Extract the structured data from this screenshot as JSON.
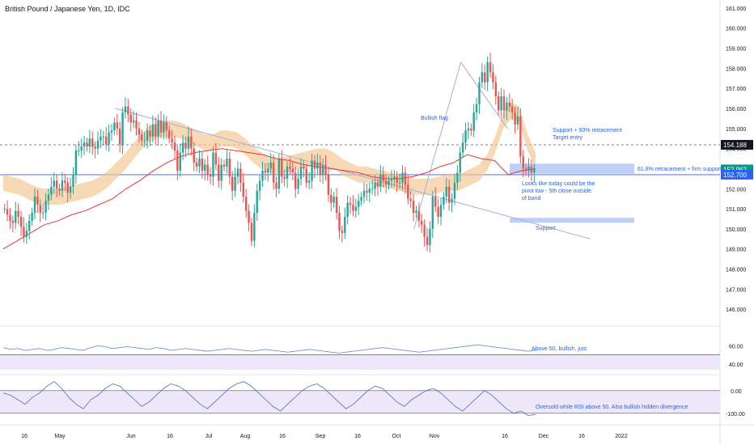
{
  "title": "British Pound / Japanese Yen, 1D, IDC",
  "colors": {
    "up": "#26a69a",
    "down": "#ef5350",
    "band": "#f5c58f",
    "ma": "#e53935",
    "trend": "#9fb1d8",
    "annotation": "#2962ff",
    "rsi_line": "#5b7fd6",
    "cci_line": "#4c6bd1",
    "zone_fill": "#b3c8f5",
    "price_axis_text": "#131722"
  },
  "chart_data": {
    "type": "candlestick",
    "ylim": [
      145.2,
      161.4
    ],
    "y_ticks": [
      "146.000",
      "147.000",
      "148.000",
      "149.000",
      "150.000",
      "151.000",
      "152.000",
      "153.000",
      "154.000",
      "155.000",
      "156.000",
      "157.000",
      "158.000",
      "159.000",
      "160.000",
      "161.000"
    ],
    "x_ticks": [
      "16",
      "May",
      "Jun",
      "16",
      "Jul",
      "Aug",
      "16",
      "Sep",
      "16",
      "Oct",
      "Nov",
      "16",
      "Dec",
      "16",
      "2022"
    ],
    "price_labels": [
      {
        "value": "154.188",
        "price": 154.188,
        "style": "dashed"
      },
      {
        "value": "152.962",
        "price": 152.962,
        "style": "current"
      },
      {
        "value": "152.700",
        "price": 152.7,
        "style": "support"
      }
    ],
    "candles_close": [
      151.0,
      150.7,
      150.4,
      150.3,
      150.9,
      150.6,
      150.1,
      149.6,
      149.9,
      150.4,
      150.8,
      151.6,
      151.2,
      150.8,
      150.8,
      151.4,
      151.7,
      152.1,
      152.4,
      152.0,
      151.9,
      152.4,
      152.3,
      151.8,
      152.1,
      152.7,
      153.9,
      153.9,
      154.1,
      154.3,
      154.1,
      154.5,
      154.1,
      154.0,
      154.4,
      154.6,
      154.6,
      154.2,
      154.8,
      154.9,
      155.3,
      155.0,
      154.2,
      155.8,
      156.1,
      155.7,
      155.3,
      155.4,
      155.0,
      154.7,
      154.4,
      154.4,
      154.9,
      154.6,
      155.2,
      154.6,
      155.4,
      154.8,
      155.3,
      154.9,
      154.5,
      154.3,
      153.9,
      152.9,
      153.8,
      154.3,
      154.0,
      154.6,
      154.0,
      153.3,
      153.1,
      153.5,
      152.9,
      153.2,
      152.7,
      152.6,
      153.8,
      153.2,
      152.4,
      153.2,
      153.1,
      153.5,
      152.6,
      151.9,
      152.6,
      153.0,
      152.3,
      151.6,
      150.9,
      150.3,
      149.4,
      150.8,
      151.9,
      152.4,
      152.9,
      152.8,
      153.0,
      153.3,
      152.3,
      152.0,
      153.5,
      152.6,
      152.5,
      153.1,
      153.0,
      152.8,
      152.0,
      152.5,
      153.1,
      153.0,
      152.3,
      152.4,
      153.4,
      153.0,
      153.3,
      152.7,
      153.2,
      152.7,
      151.7,
      151.3,
      151.6,
      150.8,
      149.9,
      149.8,
      150.6,
      151.3,
      151.2,
      150.9,
      151.1,
      151.4,
      151.6,
      151.9,
      151.8,
      152.0,
      152.0,
      152.3,
      152.1,
      152.7,
      152.4,
      152.2,
      152.4,
      152.5,
      152.6,
      152.3,
      152.3,
      152.8,
      152.2,
      151.5,
      151.4,
      150.8,
      150.9,
      150.4,
      150.2,
      149.6,
      149.2,
      150.0,
      151.6,
      151.1,
      150.6,
      151.2,
      151.6,
      152.1,
      151.3,
      151.5,
      152.3,
      152.8,
      153.8,
      154.3,
      154.9,
      155.0,
      154.9,
      155.8,
      156.2,
      157.3,
      157.8,
      157.3,
      158.3,
      157.8,
      157.3,
      156.6,
      155.9,
      156.6,
      155.9,
      156.3,
      156.1,
      155.8,
      155.2,
      155.6,
      153.6,
      153.0,
      152.9,
      153.1,
      152.8,
      152.96
    ],
    "band_center": [
      152.3,
      152.2,
      152.1,
      151.9,
      151.7,
      151.6,
      151.6,
      151.6,
      151.7,
      151.8,
      151.9,
      152.0,
      152.2,
      152.5,
      152.9,
      153.3,
      153.8,
      154.3,
      154.7,
      154.9,
      155.0,
      155.0,
      154.9,
      154.7,
      154.5,
      154.3,
      154.3,
      154.5,
      154.5,
      154.4,
      154.1,
      153.7,
      153.4,
      153.2,
      153.1,
      153.2,
      153.3,
      153.4,
      153.5,
      153.6,
      153.6,
      153.4,
      153.1,
      152.9,
      152.7,
      152.7,
      152.6,
      152.5,
      152.4,
      152.3,
      152.2,
      152.1,
      152.1,
      152.1,
      152.2,
      152.3,
      152.3,
      152.4,
      152.6,
      152.8,
      153.3,
      154.2,
      155.4,
      155.9,
      155.7,
      154.3,
      153.4
    ],
    "ma_points": [
      149.0,
      149.4,
      149.8,
      150.2,
      150.4,
      150.7,
      150.9,
      151.2,
      151.5,
      152.0,
      152.4,
      152.9,
      153.3,
      153.6,
      153.8,
      153.9,
      154.0,
      153.9,
      153.8,
      153.7,
      153.5,
      153.4,
      153.2,
      153.1,
      153.0,
      152.9,
      152.8,
      152.6,
      152.5,
      152.5,
      152.6,
      152.8,
      153.1,
      153.3,
      153.7,
      153.5,
      153.4,
      152.7,
      152.9,
      153.0
    ],
    "trendlines": [
      {
        "from": [
          0.16,
          156.0
        ],
        "to": [
          0.82,
          149.5
        ]
      },
      {
        "from": [
          0.575,
          150.0
        ],
        "to": [
          0.64,
          158.3
        ]
      },
      {
        "from": [
          0.64,
          158.3
        ],
        "to": [
          0.705,
          155.0
        ]
      }
    ],
    "zones": [
      {
        "label": "61.8% retracement + firm support",
        "low": 152.75,
        "high": 153.25
      },
      {
        "label": "Support",
        "low": 150.4,
        "high": 150.55
      }
    ],
    "annotations": [
      {
        "text": "Bullish flag"
      },
      {
        "text": "Support + 50% retracement"
      },
      {
        "text": "Target entry"
      },
      {
        "text": "61.8% retracement + firm support"
      },
      {
        "text": "Looks like today could be the"
      },
      {
        "text": "pivot low - 5th close outside"
      },
      {
        "text": "of band"
      },
      {
        "text": "Support"
      }
    ],
    "rsi": {
      "y_ticks": [
        "60.00",
        "40.00"
      ],
      "annotation": "Above 50, bullish, just",
      "values": [
        58,
        56,
        57,
        55,
        56,
        57,
        55,
        56,
        58,
        57,
        56,
        55,
        58,
        60,
        59,
        57,
        58,
        59,
        58,
        57,
        56,
        58,
        57,
        55,
        56,
        57,
        56,
        55,
        54,
        55,
        56,
        57,
        56,
        55,
        54,
        55,
        56,
        55,
        54,
        53,
        54,
        55,
        56,
        55,
        54,
        53,
        52,
        53,
        54,
        55,
        56,
        57,
        58,
        57,
        56,
        55,
        54,
        53,
        54,
        55,
        56,
        57,
        58,
        59,
        60,
        61,
        60,
        59,
        58,
        57,
        56,
        55,
        54,
        55
      ]
    },
    "cci": {
      "y_ticks": [
        "0.00",
        "-100.00"
      ],
      "annotation": "Oversold while RSI above 50. Also bullish hidden divergence",
      "values": [
        -10,
        -20,
        -40,
        -60,
        -30,
        -10,
        20,
        40,
        10,
        -30,
        -60,
        -80,
        -40,
        -20,
        10,
        30,
        20,
        -10,
        -40,
        -70,
        -50,
        -20,
        10,
        30,
        20,
        0,
        -30,
        -60,
        -80,
        -50,
        -20,
        10,
        30,
        40,
        20,
        -10,
        -40,
        -70,
        -90,
        -60,
        -30,
        0,
        20,
        30,
        10,
        -20,
        -50,
        -80,
        -60,
        -30,
        0,
        20,
        10,
        -20,
        -50,
        -70,
        -40,
        -20,
        0,
        10,
        -10,
        -40,
        -70,
        -90,
        -60,
        -30,
        0,
        -20,
        -50,
        -80,
        -100,
        -90,
        -110,
        -105
      ]
    }
  }
}
